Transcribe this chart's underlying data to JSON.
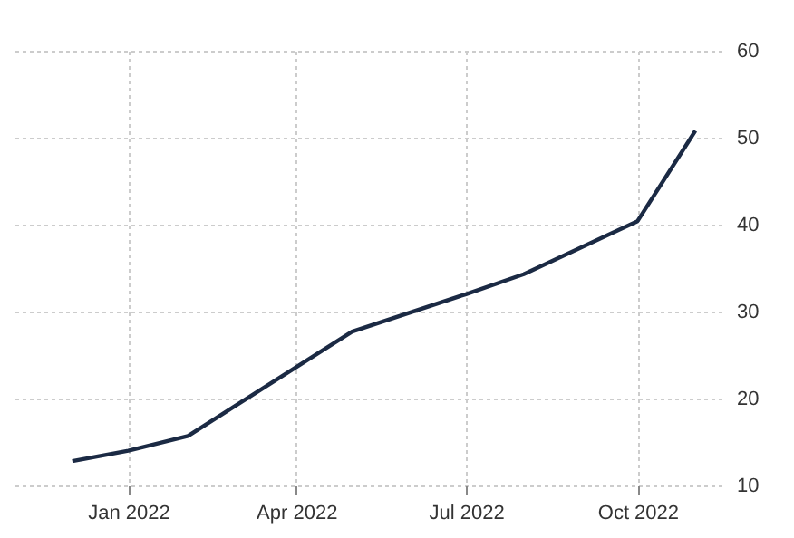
{
  "chart_data": {
    "type": "line",
    "x": [
      "2021-12-02",
      "2022-01-01",
      "2022-02-02",
      "2022-05-01",
      "2022-07-01",
      "2022-08-01",
      "2022-10-01",
      "2022-11-01"
    ],
    "series": [
      {
        "color": "#1b2a44",
        "values": [
          12.8,
          14,
          15.7,
          27.7,
          32,
          34.3,
          40.4,
          50.8
        ]
      }
    ],
    "xlim": [
      "2021-11-01",
      "2022-11-15"
    ],
    "ylim": [
      10,
      60
    ],
    "xticks": [
      {
        "value": "2022-01-01",
        "label": "Jan 2022"
      },
      {
        "value": "2022-04-01",
        "label": "Apr 2022"
      },
      {
        "value": "2022-07-01",
        "label": "Jul 2022"
      },
      {
        "value": "2022-10-01",
        "label": "Oct 2022"
      }
    ],
    "yticks": [
      10,
      20,
      30,
      40,
      50,
      60
    ],
    "grid": true,
    "marker": "none",
    "line_style": "solid"
  }
}
